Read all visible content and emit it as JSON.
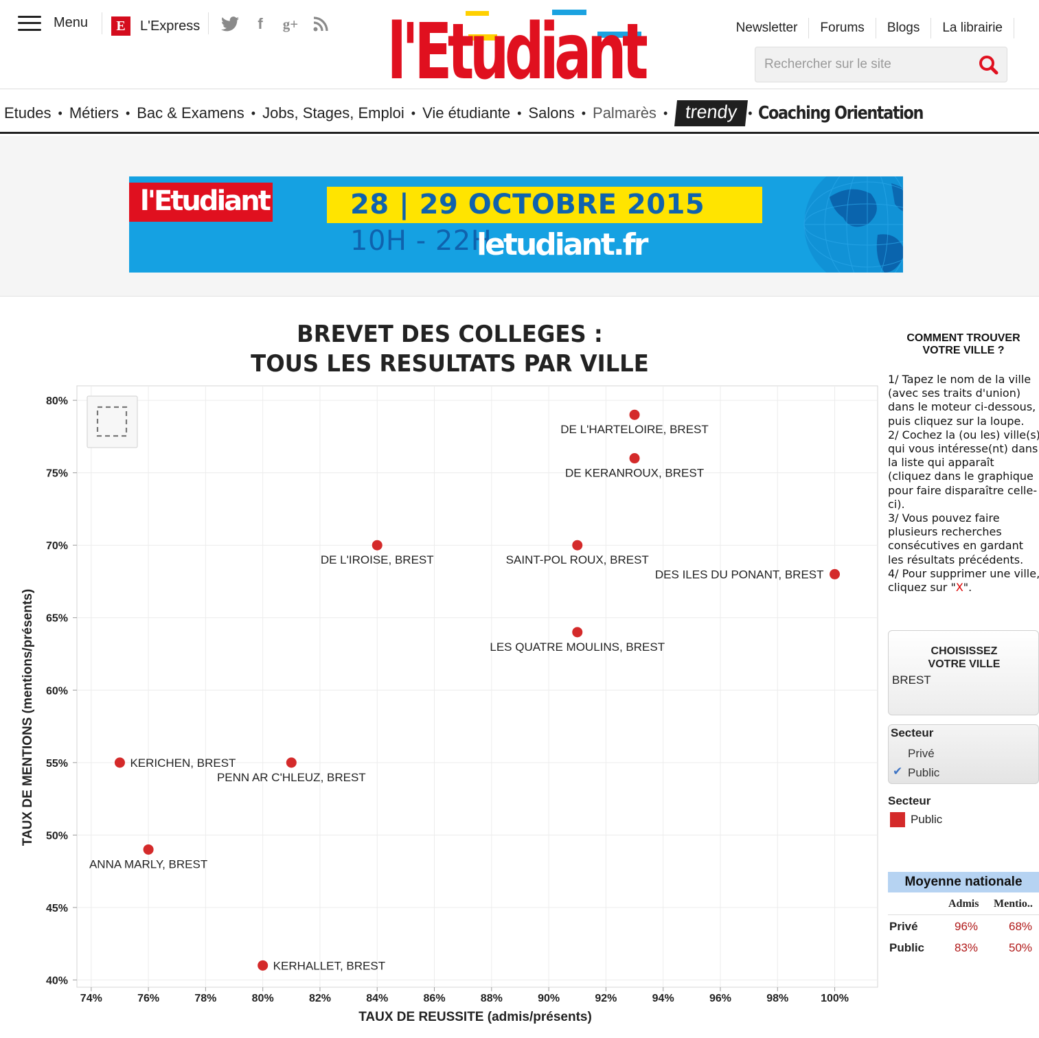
{
  "header": {
    "menu_label": "Menu",
    "lexpress_label": "L'Express",
    "brand": "l'Etudiant",
    "top_links": [
      "Newsletter",
      "Forums",
      "Blogs",
      "La librairie"
    ],
    "search_placeholder": "Rechercher sur le site",
    "social_icons": [
      "twitter-icon",
      "facebook-icon",
      "google-plus-icon",
      "rss-icon"
    ]
  },
  "nav": {
    "items": [
      "Etudes",
      "Métiers",
      "Bac & Examens",
      "Jobs, Stages, Emploi",
      "Vie étudiante",
      "Salons",
      "Palmarès"
    ],
    "trendy": "trendy",
    "coaching": "Coaching Orientation"
  },
  "banner": {
    "logo": "l'Etudiant",
    "date_bold": "28 | 29 OCTOBRE 2015",
    "date_thin": "10H - 22H",
    "site": "letudiant.fr",
    "colors": {
      "background": "#15a1e2",
      "date_bg": "#ffe400",
      "logo_bg": "#e0101f"
    }
  },
  "chart_data": {
    "type": "scatter",
    "title": "BREVET DES COLLEGES :",
    "subtitle": "TOUS LES RESULTATS PAR VILLE",
    "xlabel": "TAUX DE REUSSITE (admis/présents)",
    "ylabel": "TAUX DE MENTIONS (mentions/présents)",
    "xlim": [
      73.5,
      101.5
    ],
    "ylim": [
      39.5,
      81
    ],
    "xticks": [
      74,
      76,
      78,
      80,
      82,
      84,
      86,
      88,
      90,
      92,
      94,
      96,
      98,
      100
    ],
    "yticks": [
      40,
      45,
      50,
      55,
      60,
      65,
      70,
      75,
      80
    ],
    "grid": true,
    "point_color": "#d42a2a",
    "points": [
      {
        "label": "DE L'HARTELOIRE, BREST",
        "x": 93,
        "y": 79,
        "label_pos": "below"
      },
      {
        "label": "DE KERANROUX, BREST",
        "x": 93,
        "y": 76,
        "label_pos": "below"
      },
      {
        "label": "DE L'IROISE, BREST",
        "x": 84,
        "y": 70,
        "label_pos": "below"
      },
      {
        "label": "SAINT-POL ROUX, BREST",
        "x": 91,
        "y": 70,
        "label_pos": "below"
      },
      {
        "label": "DES ILES DU PONANT, BREST",
        "x": 100,
        "y": 68,
        "label_pos": "left"
      },
      {
        "label": "LES QUATRE MOULINS, BREST",
        "x": 91,
        "y": 64,
        "label_pos": "below"
      },
      {
        "label": "KERICHEN, BREST",
        "x": 75,
        "y": 55,
        "label_pos": "right"
      },
      {
        "label": "PENN AR C'HLEUZ, BREST",
        "x": 81,
        "y": 55,
        "label_pos": "below"
      },
      {
        "label": "ANNA MARLY, BREST",
        "x": 76,
        "y": 49,
        "label_pos": "below"
      },
      {
        "label": "KERHALLET, BREST",
        "x": 80,
        "y": 41,
        "label_pos": "right"
      }
    ]
  },
  "sidebar": {
    "help_title_1": "COMMENT TROUVER",
    "help_title_2": "VOTRE VILLE ?",
    "help_1": "1/ Tapez le nom de la ville (avec ses traits d'union) dans le moteur ci-dessous, puis cliquez sur la loupe.",
    "help_2": "2/ Cochez la (ou les) ville(s) qui vous intéresse(nt) dans la liste qui apparaît (cliquez dans le graphique pour faire disparaître celle-ci).",
    "help_3": "3/ Vous pouvez faire plusieurs recherches consécutives en gardant les résultats précédents.",
    "help_4_pre": "4/ Pour supprimer une ville, cliquez sur \"",
    "help_4_x": "X",
    "help_4_post": "\".",
    "city_title_1": "CHOISISSEZ",
    "city_title_2": "VOTRE VILLE",
    "city_value": "BREST",
    "filter_title": "Secteur",
    "filter_options": [
      "Privé",
      "Public"
    ],
    "filter_checked": "Public",
    "legend_title": "Secteur",
    "legend_items": [
      {
        "label": "Public",
        "color": "#d42a2a"
      }
    ],
    "moyenne": {
      "title": "Moyenne nationale",
      "col_admis": "Admis",
      "col_mentions": "Mentio..",
      "rows": [
        {
          "label": "Privé",
          "admis": "96%",
          "mentions": "68%"
        },
        {
          "label": "Public",
          "admis": "83%",
          "mentions": "50%"
        }
      ]
    }
  }
}
